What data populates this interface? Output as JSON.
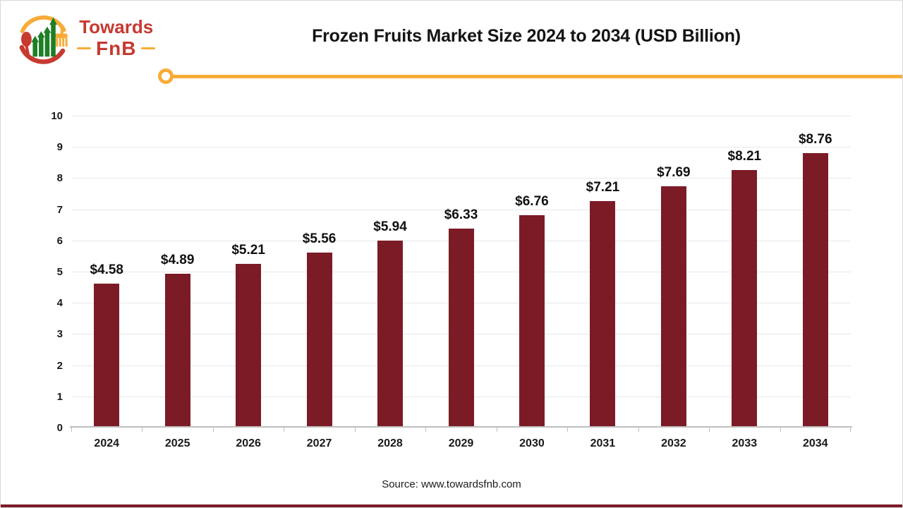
{
  "logo": {
    "brand_top": "Towards",
    "brand_bottom": "FnB"
  },
  "header": {
    "title": "Frozen Fruits Market Size 2024 to 2034 (USD Billion)"
  },
  "chart_data": {
    "type": "bar",
    "title": "Frozen Fruits Market Size 2024 to 2034 (USD Billion)",
    "categories": [
      "2024",
      "2025",
      "2026",
      "2027",
      "2028",
      "2029",
      "2030",
      "2031",
      "2032",
      "2033",
      "2034"
    ],
    "values": [
      4.58,
      4.89,
      5.21,
      5.56,
      5.94,
      6.33,
      6.76,
      7.21,
      7.69,
      8.21,
      8.76
    ],
    "data_labels": [
      "$4.58",
      "$4.89",
      "$5.21",
      "$5.56",
      "$5.94",
      "$6.33",
      "$6.76",
      "$7.21",
      "$7.69",
      "$8.21",
      "$8.76"
    ],
    "unit": "USD Billion",
    "xlabel": "",
    "ylabel": "",
    "ylim": [
      0,
      10
    ],
    "yticks": [
      0,
      1,
      2,
      3,
      4,
      5,
      6,
      7,
      8,
      9,
      10
    ],
    "grid": true,
    "legend": "none"
  },
  "footer": {
    "source": "Source: www.towardsfnb.com"
  },
  "colors": {
    "bar": "#7B1B26",
    "amber": "#F7AC38",
    "logo_red": "#C63A30",
    "logo_green": "#1E7E26",
    "gridline": "#E7E7E7",
    "axis": "#BFBFBF"
  }
}
